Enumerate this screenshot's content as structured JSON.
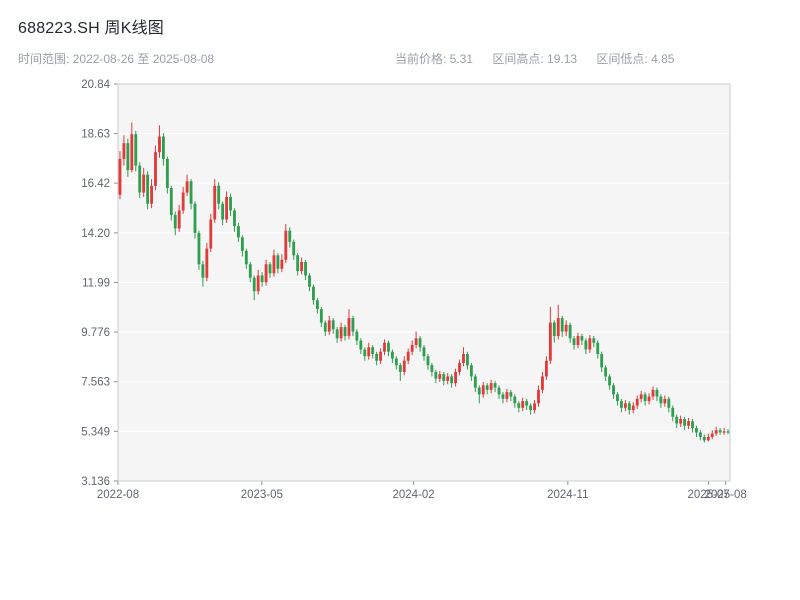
{
  "header": {
    "title": "688223.SH 周K线图",
    "date_range": "时间范围: 2022-08-26 至 2025-08-08",
    "stats": {
      "current": "当前价格: 5.31",
      "high": "区间高点: 19.13",
      "low": "区间低点: 4.85"
    }
  },
  "chart_data": {
    "type": "candlestick",
    "title": "688223.SH 周K线图",
    "symbol": "688223.SH",
    "period": "weekly",
    "date_range": [
      "2022-08-26",
      "2025-08-08"
    ],
    "current_price": 5.31,
    "range_high": 19.13,
    "range_low": 4.85,
    "ylim": [
      3.136,
      20.84
    ],
    "y_ticks": [
      "20.84",
      "18.63",
      "16.42",
      "14.20",
      "11.99",
      "9.776",
      "7.563",
      "5.349",
      "3.136"
    ],
    "x_ticks": [
      {
        "label": "2022-08",
        "pos": 0.0
      },
      {
        "label": "2023-05",
        "pos": 0.235
      },
      {
        "label": "2024-02",
        "pos": 0.483
      },
      {
        "label": "2024-11",
        "pos": 0.735
      },
      {
        "label": "2025-07",
        "pos": 0.965
      },
      {
        "label": "2025-08",
        "pos": 0.993
      }
    ],
    "grid": true,
    "legend": false,
    "background": "#f5f5f6",
    "up_color": "#e03a3a",
    "down_color": "#2f9e4f",
    "candles": [
      [
        15.9,
        17.85,
        15.7,
        17.5
      ],
      [
        17.5,
        18.55,
        17.2,
        18.2
      ],
      [
        18.2,
        18.4,
        16.7,
        17.0
      ],
      [
        17.0,
        19.13,
        16.9,
        18.6
      ],
      [
        18.6,
        18.75,
        16.95,
        17.2
      ],
      [
        17.2,
        17.35,
        15.75,
        16.0
      ],
      [
        16.0,
        17.1,
        15.8,
        16.8
      ],
      [
        16.8,
        16.95,
        15.25,
        15.5
      ],
      [
        15.5,
        16.6,
        15.3,
        16.3
      ],
      [
        16.3,
        18.1,
        16.1,
        17.8
      ],
      [
        17.8,
        19.0,
        17.55,
        18.5
      ],
      [
        18.5,
        18.65,
        17.2,
        17.5
      ],
      [
        17.5,
        17.6,
        15.95,
        16.2
      ],
      [
        16.2,
        16.3,
        14.75,
        15.0
      ],
      [
        15.0,
        15.15,
        14.1,
        14.4
      ],
      [
        14.4,
        15.45,
        14.25,
        15.2
      ],
      [
        15.2,
        16.25,
        15.05,
        16.0
      ],
      [
        16.0,
        16.8,
        15.85,
        16.5
      ],
      [
        16.5,
        16.6,
        15.25,
        15.5
      ],
      [
        15.5,
        15.6,
        13.95,
        14.2
      ],
      [
        14.2,
        14.3,
        12.55,
        12.8
      ],
      [
        12.8,
        12.95,
        11.8,
        12.2
      ],
      [
        12.2,
        13.75,
        12.05,
        13.5
      ],
      [
        13.5,
        15.05,
        13.35,
        14.8
      ],
      [
        14.8,
        16.6,
        14.65,
        16.3
      ],
      [
        16.3,
        16.45,
        15.25,
        15.5
      ],
      [
        15.5,
        15.6,
        14.55,
        14.8
      ],
      [
        14.8,
        16.05,
        14.65,
        15.8
      ],
      [
        15.8,
        15.95,
        14.95,
        15.2
      ],
      [
        15.2,
        15.3,
        14.25,
        14.5
      ],
      [
        14.5,
        14.65,
        13.8,
        14.0
      ],
      [
        14.0,
        14.1,
        13.15,
        13.4
      ],
      [
        13.4,
        13.5,
        12.6,
        12.8
      ],
      [
        12.8,
        12.9,
        12.0,
        12.2
      ],
      [
        12.2,
        12.3,
        11.2,
        11.6
      ],
      [
        11.6,
        12.55,
        11.45,
        12.3
      ],
      [
        12.3,
        12.45,
        11.8,
        12.0
      ],
      [
        12.0,
        13.0,
        11.85,
        12.8
      ],
      [
        12.8,
        12.9,
        12.2,
        12.4
      ],
      [
        12.4,
        13.45,
        12.25,
        13.2
      ],
      [
        13.2,
        13.3,
        12.4,
        12.6
      ],
      [
        12.6,
        13.25,
        12.45,
        13.0
      ],
      [
        13.0,
        14.6,
        12.85,
        14.3
      ],
      [
        14.3,
        14.45,
        13.55,
        13.8
      ],
      [
        13.8,
        13.9,
        13.0,
        13.2
      ],
      [
        13.2,
        13.3,
        12.3,
        12.5
      ],
      [
        12.5,
        13.1,
        12.35,
        12.9
      ],
      [
        12.9,
        13.0,
        12.1,
        12.3
      ],
      [
        12.3,
        12.4,
        11.6,
        11.8
      ],
      [
        11.8,
        11.9,
        11.0,
        11.2
      ],
      [
        11.2,
        11.3,
        10.6,
        10.8
      ],
      [
        10.8,
        10.9,
        10.0,
        10.2
      ],
      [
        10.2,
        10.3,
        9.6,
        9.8
      ],
      [
        9.8,
        10.5,
        9.65,
        10.3
      ],
      [
        10.3,
        10.4,
        9.7,
        9.9
      ],
      [
        9.9,
        10.0,
        9.3,
        9.5
      ],
      [
        9.5,
        10.2,
        9.35,
        10.0
      ],
      [
        10.0,
        10.1,
        9.4,
        9.6
      ],
      [
        9.6,
        10.8,
        9.45,
        10.4
      ],
      [
        10.4,
        10.5,
        9.6,
        9.8
      ],
      [
        9.8,
        9.9,
        9.2,
        9.4
      ],
      [
        9.4,
        9.5,
        8.8,
        9.0
      ],
      [
        9.0,
        9.1,
        8.5,
        8.7
      ],
      [
        8.7,
        9.3,
        8.55,
        9.1
      ],
      [
        9.1,
        9.2,
        8.6,
        8.8
      ],
      [
        8.8,
        8.9,
        8.3,
        8.5
      ],
      [
        8.5,
        9.05,
        8.35,
        8.9
      ],
      [
        8.9,
        9.45,
        8.75,
        9.3
      ],
      [
        9.3,
        9.4,
        8.7,
        8.9
      ],
      [
        8.9,
        9.0,
        8.4,
        8.6
      ],
      [
        8.6,
        8.7,
        8.1,
        8.3
      ],
      [
        8.3,
        8.4,
        7.6,
        8.0
      ],
      [
        8.0,
        8.7,
        7.85,
        8.5
      ],
      [
        8.5,
        9.05,
        8.35,
        8.9
      ],
      [
        8.9,
        9.4,
        8.75,
        9.2
      ],
      [
        9.2,
        9.8,
        9.05,
        9.5
      ],
      [
        9.5,
        9.6,
        8.9,
        9.1
      ],
      [
        9.1,
        9.2,
        8.5,
        8.7
      ],
      [
        8.7,
        8.8,
        8.1,
        8.3
      ],
      [
        8.3,
        8.4,
        7.8,
        8.0
      ],
      [
        8.0,
        8.1,
        7.5,
        7.7
      ],
      [
        7.7,
        8.05,
        7.55,
        7.9
      ],
      [
        7.9,
        8.0,
        7.4,
        7.6
      ],
      [
        7.6,
        7.95,
        7.45,
        7.8
      ],
      [
        7.8,
        7.9,
        7.3,
        7.5
      ],
      [
        7.5,
        8.15,
        7.35,
        8.0
      ],
      [
        8.0,
        8.55,
        7.85,
        8.4
      ],
      [
        8.4,
        9.1,
        8.25,
        8.8
      ],
      [
        8.8,
        8.9,
        8.1,
        8.3
      ],
      [
        8.3,
        8.4,
        7.6,
        7.8
      ],
      [
        7.8,
        7.9,
        7.1,
        7.3
      ],
      [
        7.3,
        7.4,
        6.6,
        7.0
      ],
      [
        7.0,
        7.55,
        6.85,
        7.4
      ],
      [
        7.4,
        7.5,
        7.0,
        7.2
      ],
      [
        7.2,
        7.65,
        7.05,
        7.5
      ],
      [
        7.5,
        7.6,
        7.1,
        7.3
      ],
      [
        7.3,
        7.4,
        6.8,
        7.0
      ],
      [
        7.0,
        7.1,
        6.6,
        6.8
      ],
      [
        6.8,
        7.25,
        6.65,
        7.1
      ],
      [
        7.1,
        7.2,
        6.7,
        6.9
      ],
      [
        6.9,
        7.0,
        6.4,
        6.6
      ],
      [
        6.6,
        6.7,
        6.2,
        6.4
      ],
      [
        6.4,
        6.85,
        6.25,
        6.7
      ],
      [
        6.7,
        6.8,
        6.3,
        6.5
      ],
      [
        6.5,
        6.6,
        6.1,
        6.3
      ],
      [
        6.3,
        6.75,
        6.15,
        6.6
      ],
      [
        6.6,
        7.4,
        6.45,
        7.2
      ],
      [
        7.2,
        8.0,
        7.05,
        7.8
      ],
      [
        7.8,
        8.7,
        7.65,
        8.5
      ],
      [
        8.5,
        10.9,
        8.35,
        10.2
      ],
      [
        10.2,
        10.3,
        9.3,
        9.6
      ],
      [
        9.6,
        11.0,
        9.45,
        10.4
      ],
      [
        10.4,
        10.5,
        9.55,
        9.8
      ],
      [
        9.8,
        10.3,
        9.6,
        10.1
      ],
      [
        10.1,
        10.2,
        9.3,
        9.5
      ],
      [
        9.5,
        9.6,
        9.0,
        9.2
      ],
      [
        9.2,
        9.75,
        9.05,
        9.6
      ],
      [
        9.6,
        9.7,
        9.2,
        9.4
      ],
      [
        9.4,
        9.5,
        8.8,
        9.0
      ],
      [
        9.0,
        9.65,
        8.85,
        9.5
      ],
      [
        9.5,
        9.6,
        9.1,
        9.3
      ],
      [
        9.3,
        9.4,
        8.6,
        8.8
      ],
      [
        8.8,
        8.9,
        8.0,
        8.2
      ],
      [
        8.2,
        8.3,
        7.6,
        7.8
      ],
      [
        7.8,
        7.9,
        7.2,
        7.4
      ],
      [
        7.4,
        7.5,
        6.8,
        7.0
      ],
      [
        7.0,
        7.1,
        6.5,
        6.7
      ],
      [
        6.7,
        6.8,
        6.2,
        6.4
      ],
      [
        6.4,
        6.75,
        6.25,
        6.6
      ],
      [
        6.6,
        6.7,
        6.1,
        6.3
      ],
      [
        6.3,
        6.65,
        6.15,
        6.5
      ],
      [
        6.5,
        6.95,
        6.35,
        6.8
      ],
      [
        6.8,
        7.15,
        6.65,
        7.0
      ],
      [
        7.0,
        7.1,
        6.5,
        6.7
      ],
      [
        6.7,
        7.05,
        6.55,
        6.9
      ],
      [
        6.9,
        7.35,
        6.75,
        7.2
      ],
      [
        7.2,
        7.3,
        6.7,
        6.9
      ],
      [
        6.9,
        7.0,
        6.4,
        6.6
      ],
      [
        6.6,
        6.95,
        6.45,
        6.8
      ],
      [
        6.8,
        6.9,
        6.2,
        6.4
      ],
      [
        6.4,
        6.5,
        5.8,
        6.0
      ],
      [
        6.0,
        6.1,
        5.5,
        5.7
      ],
      [
        5.7,
        6.05,
        5.55,
        5.9
      ],
      [
        5.9,
        6.0,
        5.4,
        5.6
      ],
      [
        5.6,
        5.95,
        5.45,
        5.8
      ],
      [
        5.8,
        5.9,
        5.3,
        5.5
      ],
      [
        5.5,
        5.6,
        5.1,
        5.3
      ],
      [
        5.3,
        5.4,
        4.95,
        5.1
      ],
      [
        5.1,
        5.2,
        4.85,
        4.95
      ],
      [
        4.95,
        5.25,
        4.9,
        5.1
      ],
      [
        5.1,
        5.4,
        5.0,
        5.25
      ],
      [
        5.25,
        5.55,
        5.15,
        5.4
      ],
      [
        5.4,
        5.5,
        5.2,
        5.3
      ],
      [
        5.3,
        5.5,
        5.2,
        5.35
      ],
      [
        5.35,
        5.45,
        5.22,
        5.31
      ]
    ]
  }
}
